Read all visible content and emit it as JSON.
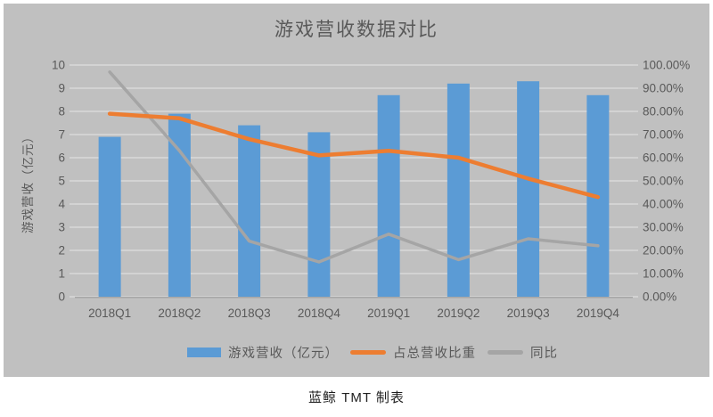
{
  "caption": "蓝鲸 TMT 制表",
  "chart_data": {
    "type": "combo-bar-line",
    "title": "游戏营收数据对比",
    "categories": [
      "2018Q1",
      "2018Q2",
      "2018Q3",
      "2018Q4",
      "2019Q1",
      "2019Q2",
      "2019Q3",
      "2019Q4"
    ],
    "series": [
      {
        "name": "游戏营收（亿元）",
        "type": "bar",
        "axis": "left",
        "color": "#5b9bd5",
        "values": [
          6.9,
          7.9,
          7.4,
          7.1,
          8.7,
          9.2,
          9.3,
          8.7
        ]
      },
      {
        "name": "占总营收比重",
        "type": "line",
        "axis": "right",
        "color": "#ed7d31",
        "values": [
          79,
          77,
          68,
          61,
          63,
          60,
          51,
          43
        ]
      },
      {
        "name": "同比",
        "type": "line",
        "axis": "right",
        "color": "#a5a5a5",
        "values": [
          97,
          63,
          24,
          15,
          27,
          16,
          25,
          22
        ]
      }
    ],
    "left_axis": {
      "label": "游戏营收（亿元）",
      "min": 0,
      "max": 10,
      "step": 1,
      "tick_labels": [
        "0",
        "1",
        "2",
        "3",
        "4",
        "5",
        "6",
        "7",
        "8",
        "9",
        "10"
      ]
    },
    "right_axis": {
      "min": 0,
      "max": 100,
      "step": 10,
      "tick_labels": [
        "0.00%",
        "10.00%",
        "20.00%",
        "30.00%",
        "40.00%",
        "50.00%",
        "60.00%",
        "70.00%",
        "80.00%",
        "90.00%",
        "100.00%"
      ]
    },
    "grid": true,
    "legend_position": "bottom",
    "colors": {
      "grid": "#d9d9d9",
      "axis_line": "#a6a6a6",
      "text": "#595959",
      "panel_bg": "#c0c0c0"
    }
  }
}
